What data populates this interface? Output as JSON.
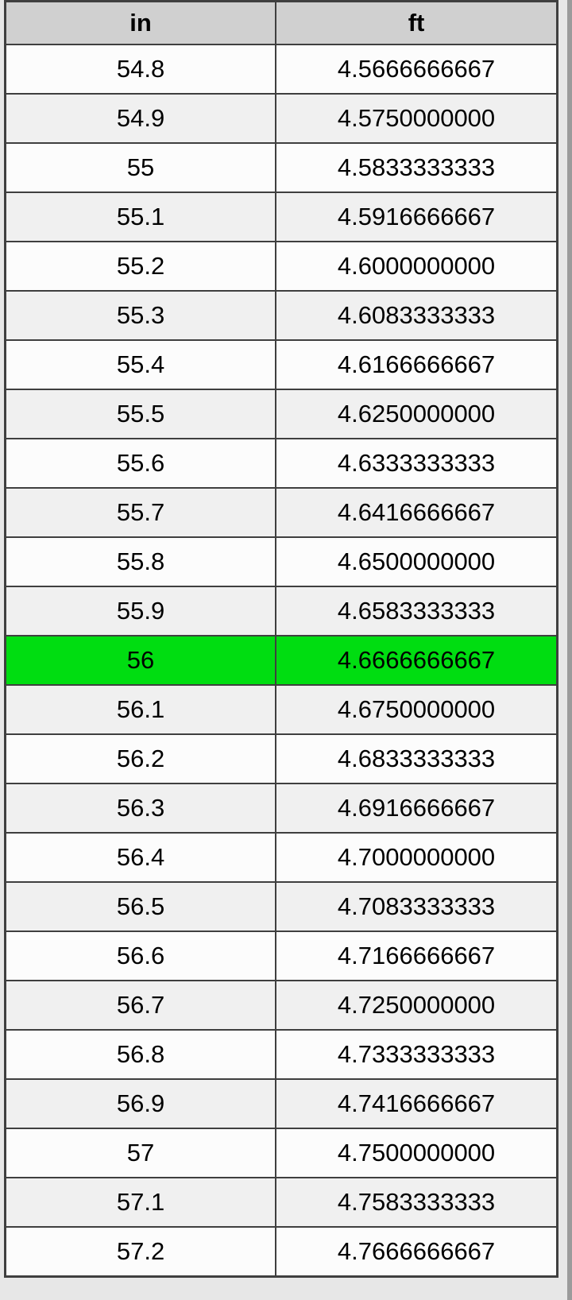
{
  "page": {
    "background_color": "#e7e7e7",
    "right_edge_color": "#9b9b9b"
  },
  "table_style": {
    "header_bg": "#d0d0d0",
    "row_bg_white": "#fcfcfc",
    "row_bg_gray": "#f0f0f0",
    "highlight_bg": "#00dd11",
    "border_color": "#3f3f3f",
    "text_color": "#000000"
  },
  "chart_data": {
    "type": "table",
    "columns": [
      "in",
      "ft"
    ],
    "highlighted_row_index": 12,
    "rows": [
      {
        "in": "54.8",
        "ft": "4.5666666667",
        "highlight": false
      },
      {
        "in": "54.9",
        "ft": "4.5750000000",
        "highlight": false
      },
      {
        "in": "55",
        "ft": "4.5833333333",
        "highlight": false
      },
      {
        "in": "55.1",
        "ft": "4.5916666667",
        "highlight": false
      },
      {
        "in": "55.2",
        "ft": "4.6000000000",
        "highlight": false
      },
      {
        "in": "55.3",
        "ft": "4.6083333333",
        "highlight": false
      },
      {
        "in": "55.4",
        "ft": "4.6166666667",
        "highlight": false
      },
      {
        "in": "55.5",
        "ft": "4.6250000000",
        "highlight": false
      },
      {
        "in": "55.6",
        "ft": "4.6333333333",
        "highlight": false
      },
      {
        "in": "55.7",
        "ft": "4.6416666667",
        "highlight": false
      },
      {
        "in": "55.8",
        "ft": "4.6500000000",
        "highlight": false
      },
      {
        "in": "55.9",
        "ft": "4.6583333333",
        "highlight": false
      },
      {
        "in": "56",
        "ft": "4.6666666667",
        "highlight": true
      },
      {
        "in": "56.1",
        "ft": "4.6750000000",
        "highlight": false
      },
      {
        "in": "56.2",
        "ft": "4.6833333333",
        "highlight": false
      },
      {
        "in": "56.3",
        "ft": "4.6916666667",
        "highlight": false
      },
      {
        "in": "56.4",
        "ft": "4.7000000000",
        "highlight": false
      },
      {
        "in": "56.5",
        "ft": "4.7083333333",
        "highlight": false
      },
      {
        "in": "56.6",
        "ft": "4.7166666667",
        "highlight": false
      },
      {
        "in": "56.7",
        "ft": "4.7250000000",
        "highlight": false
      },
      {
        "in": "56.8",
        "ft": "4.7333333333",
        "highlight": false
      },
      {
        "in": "56.9",
        "ft": "4.7416666667",
        "highlight": false
      },
      {
        "in": "57",
        "ft": "4.7500000000",
        "highlight": false
      },
      {
        "in": "57.1",
        "ft": "4.7583333333",
        "highlight": false
      },
      {
        "in": "57.2",
        "ft": "4.7666666667",
        "highlight": false
      }
    ]
  }
}
